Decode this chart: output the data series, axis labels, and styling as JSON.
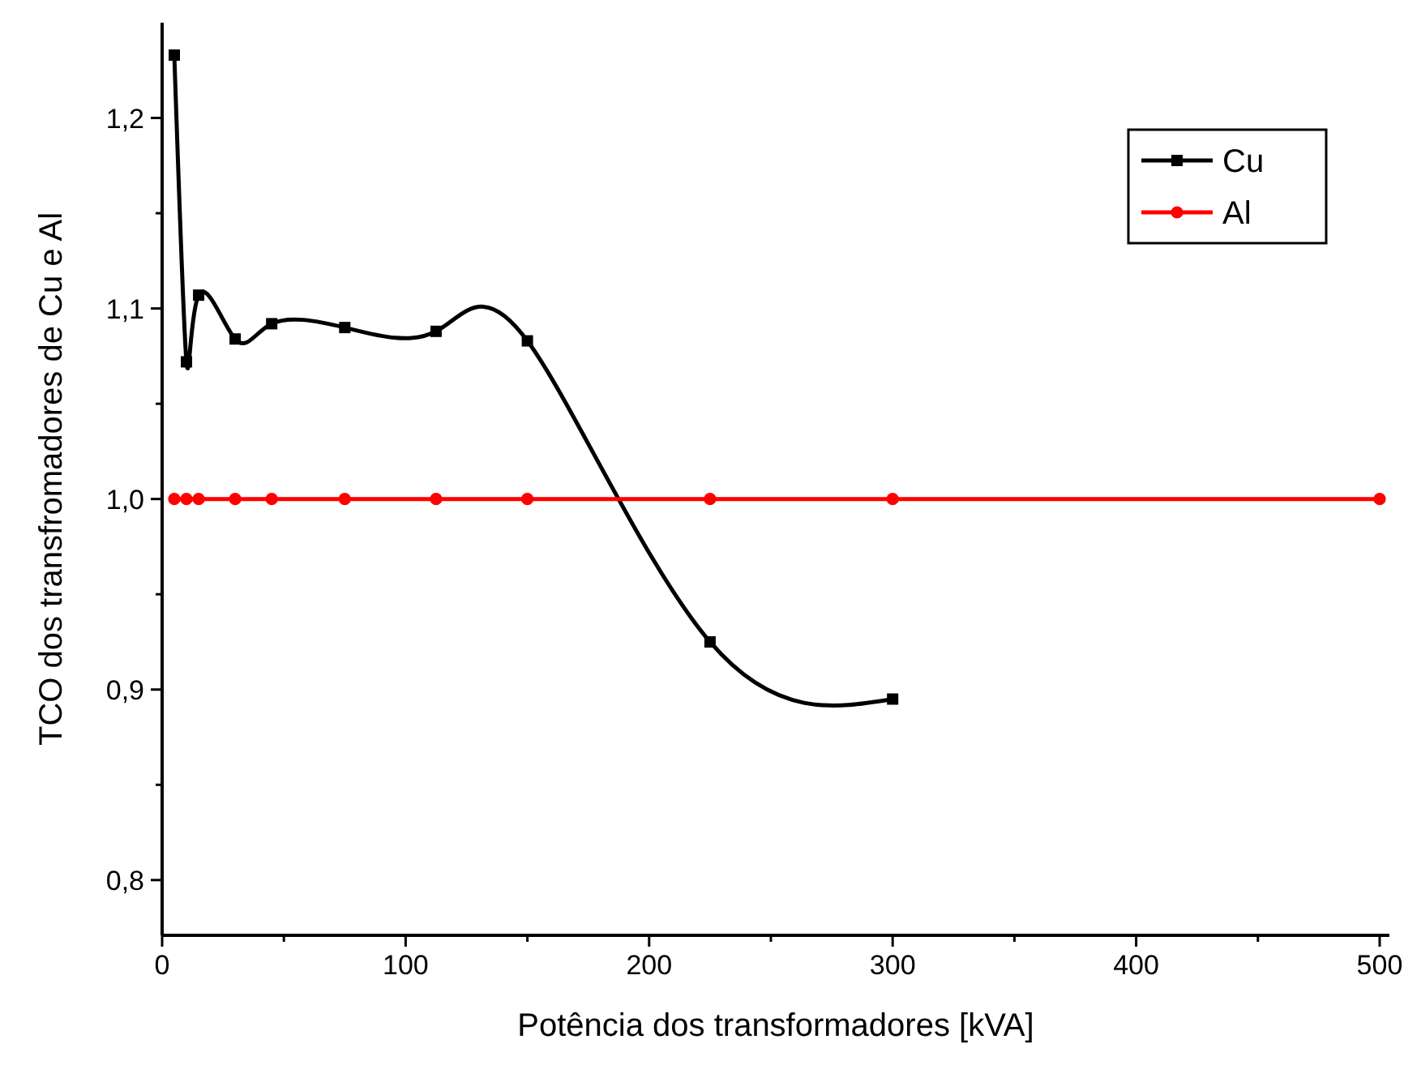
{
  "chart_data": {
    "type": "line",
    "xlabel": "Potência dos transformadores [kVA]",
    "ylabel": "TCO dos transfromadores de Cu e Al",
    "x": [
      5,
      10,
      15,
      30,
      45,
      75,
      112.5,
      150,
      225,
      300,
      500
    ],
    "series": [
      {
        "name": "Cu",
        "color": "#000000",
        "marker": "square",
        "values": [
          1.233,
          1.072,
          1.107,
          1.084,
          1.092,
          1.09,
          1.088,
          1.083,
          0.925,
          0.895,
          null
        ]
      },
      {
        "name": "Al",
        "color": "#ff0000",
        "marker": "circle",
        "values": [
          1.0,
          1.0,
          1.0,
          1.0,
          1.0,
          1.0,
          1.0,
          1.0,
          1.0,
          1.0,
          1.0
        ]
      }
    ],
    "xlim": [
      0,
      504
    ],
    "ylim": [
      0.771,
      1.25
    ],
    "xticks": [
      0,
      {
        "value": 50,
        "label": null
      },
      100,
      {
        "value": 150,
        "label": null
      },
      200,
      {
        "value": 250,
        "label": null
      },
      300,
      {
        "value": 350,
        "label": null
      },
      400,
      {
        "value": 450,
        "label": null
      },
      500
    ],
    "yticks": [
      {
        "value": 0.8,
        "label": "0,8"
      },
      {
        "value": 0.85,
        "label": null
      },
      {
        "value": 0.9,
        "label": "0,9"
      },
      {
        "value": 0.95,
        "label": null
      },
      {
        "value": 1.0,
        "label": "1,0"
      },
      {
        "value": 1.05,
        "label": null
      },
      {
        "value": 1.1,
        "label": "1,1"
      },
      {
        "value": 1.15,
        "label": null
      },
      {
        "value": 1.2,
        "label": "1,2"
      }
    ],
    "legend": "top right",
    "grid": false,
    "line_style": "solid"
  }
}
